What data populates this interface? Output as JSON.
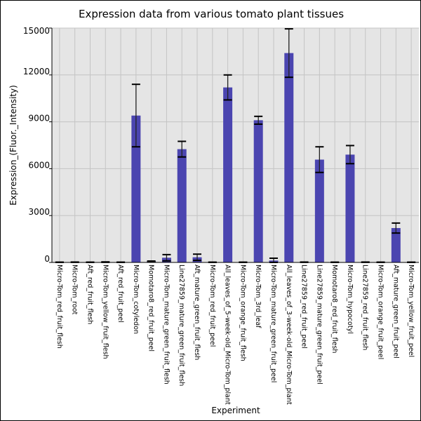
{
  "chart_data": {
    "type": "bar",
    "title": "Expression data from various tomato plant tissues",
    "xlabel": "Experiment",
    "ylabel": "Expression_(Fluor._Intensity)",
    "ylim": [
      0,
      15000
    ],
    "yticks": [
      0,
      3000,
      6000,
      9000,
      12000,
      15000
    ],
    "grid": true,
    "bar_color": "#4b45b0",
    "background_color": "#e5e5e5",
    "categories": [
      "Micro-Tom_red_fruit_flesh",
      "Micro-Tom_root",
      "Aft_red_fruit_flesh",
      "Micro-Tom_yellow_fruit_flesh",
      "Aft_red_fruit_peel",
      "Micro-Tom_cotyledon",
      "Momotaro8_red_fruit_peel",
      "Micro-Tom_mature_green_fruit_flesh",
      "Line27859_mature_green_fruit_flesh",
      "Aft_mature_green_fruit_flesh",
      "Micro-Tom_red_fruit_peel",
      "All_leaves_of_5-week-old_Micro-Tom_plant",
      "Micro-Tom_orange_fruit_flesh",
      "Micro-Tom_3rd_leaf",
      "Micro-Tom_mature_green_fruit_peel",
      "All_leaves_of_3-week-old_Micro-Tom_plant",
      "Line27859_red_fruit_peel",
      "Line27859_mature_green_fruit_peel",
      "Momotaro8_red_fruit_flesh",
      "Micro-Tom_hypocotyl",
      "Line27859_red_fruit_flesh",
      "Micro-Tom_orange_fruit_peel",
      "Aft_mature_green_fruit_peel",
      "Micro-Tom_yellow_fruit_peel"
    ],
    "values": [
      10,
      15,
      10,
      20,
      10,
      9400,
      60,
      300,
      7250,
      330,
      10,
      11200,
      10,
      9100,
      120,
      13400,
      15,
      6580,
      10,
      6900,
      15,
      10,
      2200,
      10
    ],
    "errors": [
      10,
      10,
      10,
      15,
      10,
      2000,
      30,
      200,
      500,
      200,
      10,
      800,
      10,
      250,
      150,
      1550,
      10,
      820,
      10,
      580,
      10,
      10,
      320,
      10
    ]
  }
}
